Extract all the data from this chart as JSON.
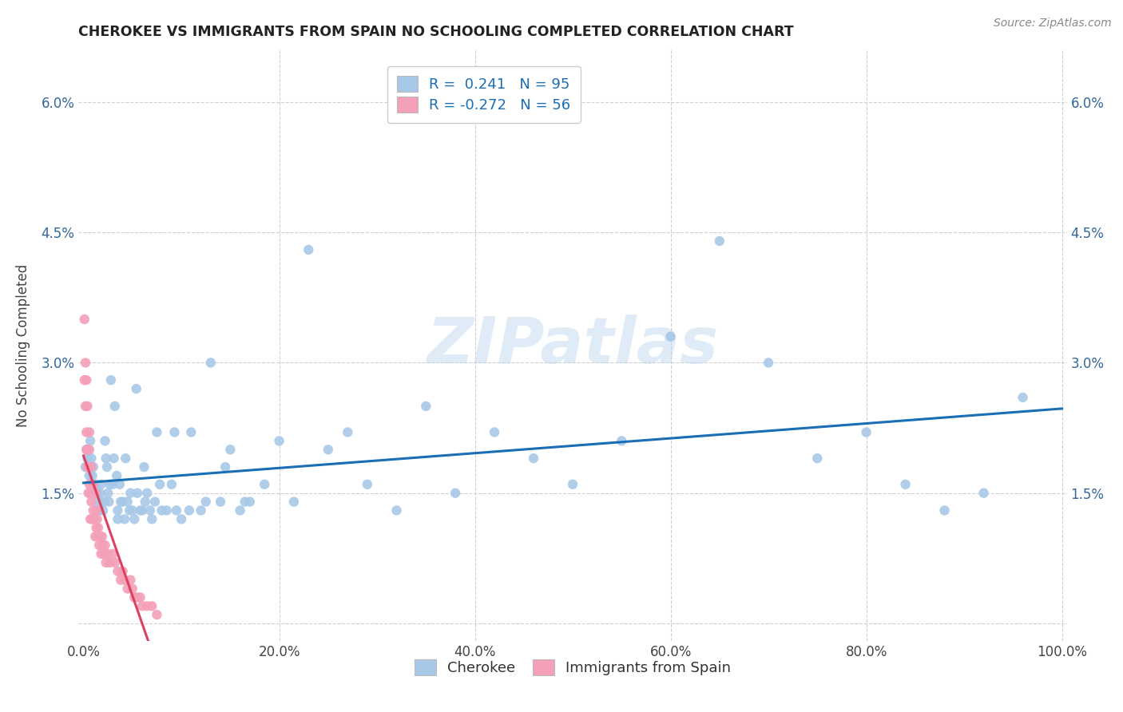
{
  "title": "CHEROKEE VS IMMIGRANTS FROM SPAIN NO SCHOOLING COMPLETED CORRELATION CHART",
  "source": "Source: ZipAtlas.com",
  "ylabel": "No Schooling Completed",
  "xlim": [
    -0.005,
    1.005
  ],
  "ylim": [
    -0.002,
    0.066
  ],
  "xticks": [
    0.0,
    0.2,
    0.4,
    0.6,
    0.8,
    1.0
  ],
  "xticklabels": [
    "0.0%",
    "20.0%",
    "40.0%",
    "60.0%",
    "80.0%",
    "100.0%"
  ],
  "yticks": [
    0.0,
    0.015,
    0.03,
    0.045,
    0.06
  ],
  "yticklabels": [
    "",
    "1.5%",
    "3.0%",
    "4.5%",
    "6.0%"
  ],
  "legend_labels": [
    "Cherokee",
    "Immigrants from Spain"
  ],
  "r_cherokee": "0.241",
  "n_cherokee": 95,
  "r_spain": "-0.272",
  "n_spain": 56,
  "cherokee_color": "#a8c8e8",
  "spain_color": "#f4a0b8",
  "trendline_cherokee_color": "#1a6eb5",
  "trendline_spain_color": "#e04060",
  "background_color": "#ffffff",
  "grid_color": "#d0d0d0",
  "watermark": "ZIPatlas",
  "cherokee_x": [
    0.002,
    0.003,
    0.004,
    0.005,
    0.006,
    0.007,
    0.008,
    0.009,
    0.01,
    0.011,
    0.012,
    0.013,
    0.014,
    0.015,
    0.016,
    0.017,
    0.018,
    0.019,
    0.02,
    0.021,
    0.022,
    0.023,
    0.024,
    0.025,
    0.026,
    0.027,
    0.028,
    0.03,
    0.031,
    0.032,
    0.034,
    0.035,
    0.037,
    0.038,
    0.04,
    0.042,
    0.043,
    0.045,
    0.047,
    0.05,
    0.052,
    0.054,
    0.055,
    0.058,
    0.06,
    0.063,
    0.065,
    0.068,
    0.07,
    0.073,
    0.075,
    0.08,
    0.085,
    0.09,
    0.095,
    0.1,
    0.11,
    0.12,
    0.13,
    0.14,
    0.15,
    0.16,
    0.17,
    0.185,
    0.2,
    0.215,
    0.23,
    0.25,
    0.27,
    0.29,
    0.32,
    0.35,
    0.38,
    0.42,
    0.46,
    0.5,
    0.55,
    0.6,
    0.65,
    0.7,
    0.75,
    0.8,
    0.84,
    0.88,
    0.92,
    0.96,
    0.035,
    0.048,
    0.062,
    0.078,
    0.093,
    0.108,
    0.125,
    0.145,
    0.165
  ],
  "cherokee_y": [
    0.018,
    0.02,
    0.019,
    0.018,
    0.017,
    0.021,
    0.019,
    0.017,
    0.018,
    0.016,
    0.015,
    0.016,
    0.015,
    0.014,
    0.013,
    0.015,
    0.016,
    0.014,
    0.013,
    0.014,
    0.021,
    0.019,
    0.018,
    0.015,
    0.014,
    0.016,
    0.028,
    0.016,
    0.019,
    0.025,
    0.017,
    0.013,
    0.016,
    0.014,
    0.014,
    0.012,
    0.019,
    0.014,
    0.013,
    0.013,
    0.012,
    0.027,
    0.015,
    0.013,
    0.013,
    0.014,
    0.015,
    0.013,
    0.012,
    0.014,
    0.022,
    0.013,
    0.013,
    0.016,
    0.013,
    0.012,
    0.022,
    0.013,
    0.03,
    0.014,
    0.02,
    0.013,
    0.014,
    0.016,
    0.021,
    0.014,
    0.043,
    0.02,
    0.022,
    0.016,
    0.013,
    0.025,
    0.015,
    0.022,
    0.019,
    0.016,
    0.021,
    0.033,
    0.044,
    0.03,
    0.019,
    0.022,
    0.016,
    0.013,
    0.015,
    0.026,
    0.012,
    0.015,
    0.018,
    0.016,
    0.022,
    0.013,
    0.014,
    0.018,
    0.014
  ],
  "spain_x": [
    0.001,
    0.001,
    0.002,
    0.002,
    0.003,
    0.003,
    0.003,
    0.004,
    0.004,
    0.004,
    0.005,
    0.005,
    0.006,
    0.006,
    0.006,
    0.007,
    0.007,
    0.008,
    0.008,
    0.009,
    0.01,
    0.01,
    0.011,
    0.012,
    0.012,
    0.013,
    0.013,
    0.014,
    0.015,
    0.015,
    0.016,
    0.017,
    0.018,
    0.019,
    0.02,
    0.021,
    0.022,
    0.023,
    0.025,
    0.027,
    0.03,
    0.032,
    0.035,
    0.038,
    0.04,
    0.042,
    0.045,
    0.048,
    0.05,
    0.052,
    0.055,
    0.058,
    0.06,
    0.065,
    0.07,
    0.075
  ],
  "spain_y": [
    0.035,
    0.028,
    0.03,
    0.025,
    0.022,
    0.02,
    0.028,
    0.018,
    0.02,
    0.025,
    0.015,
    0.018,
    0.02,
    0.022,
    0.016,
    0.015,
    0.012,
    0.014,
    0.018,
    0.012,
    0.016,
    0.013,
    0.012,
    0.015,
    0.01,
    0.011,
    0.013,
    0.012,
    0.01,
    0.011,
    0.009,
    0.01,
    0.008,
    0.01,
    0.009,
    0.008,
    0.009,
    0.007,
    0.008,
    0.007,
    0.008,
    0.007,
    0.006,
    0.005,
    0.006,
    0.005,
    0.004,
    0.005,
    0.004,
    0.003,
    0.003,
    0.003,
    0.002,
    0.002,
    0.002,
    0.001
  ]
}
